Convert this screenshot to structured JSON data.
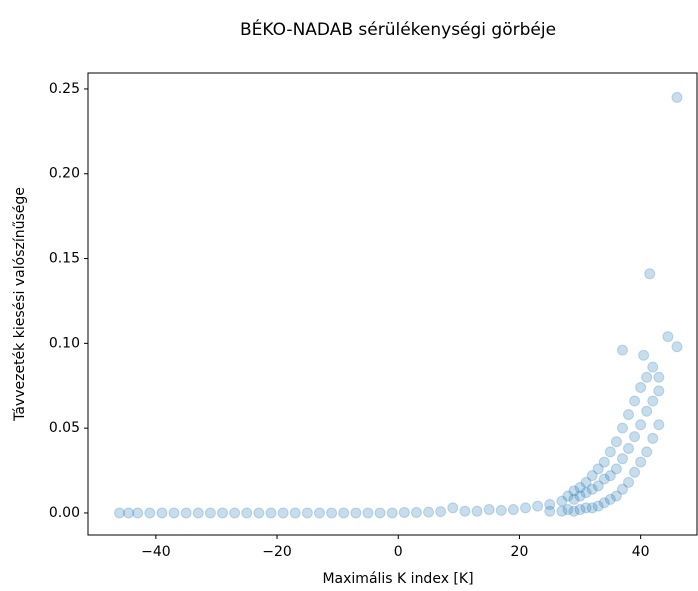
{
  "chart_data": {
    "type": "scatter",
    "title": "BÉKO-NADAB sérülékenységi görbéje",
    "xlabel": "Maximális K index  [K]",
    "ylabel": "Távvezeték kiesési valószínűsége",
    "color": "#1f77b4",
    "x": [
      -46,
      -44.5,
      -43,
      -41,
      -39,
      -37,
      -35,
      -33,
      -31,
      -29,
      -27,
      -25,
      -23,
      -21,
      -19,
      -17,
      -15,
      -13,
      -11,
      -9,
      -7,
      -5,
      -3,
      -1,
      1,
      3,
      5,
      7,
      9,
      11,
      13,
      15,
      17,
      19,
      21,
      23,
      25,
      25,
      27,
      27,
      28,
      28,
      29,
      29,
      29,
      30,
      30,
      30,
      31,
      31,
      31,
      32,
      32,
      32,
      33,
      33,
      33,
      34,
      34,
      34,
      35,
      35,
      35,
      36,
      36,
      36,
      37,
      37,
      37,
      38,
      38,
      38,
      39,
      39,
      39,
      40,
      40,
      40,
      41,
      41,
      41,
      42,
      42,
      42,
      43,
      43,
      43,
      46,
      41.5,
      44.5,
      46,
      37,
      40.5
    ],
    "y": [
      0,
      0,
      0,
      0,
      0,
      0,
      0,
      0,
      0,
      0,
      0,
      0,
      0,
      0,
      0,
      0,
      0,
      0,
      0,
      0,
      0,
      0,
      0,
      0,
      0.0003,
      0.0003,
      0.0005,
      0.0008,
      0.003,
      0.001,
      0.001,
      0.002,
      0.0015,
      0.002,
      0.003,
      0.004,
      0.001,
      0.005,
      0.001,
      0.007,
      0.002,
      0.01,
      0.001,
      0.008,
      0.013,
      0.002,
      0.01,
      0.015,
      0.003,
      0.012,
      0.018,
      0.003,
      0.014,
      0.022,
      0.004,
      0.016,
      0.026,
      0.006,
      0.02,
      0.03,
      0.008,
      0.022,
      0.036,
      0.01,
      0.026,
      0.042,
      0.014,
      0.032,
      0.05,
      0.018,
      0.038,
      0.058,
      0.024,
      0.045,
      0.066,
      0.03,
      0.052,
      0.074,
      0.036,
      0.06,
      0.08,
      0.044,
      0.066,
      0.086,
      0.052,
      0.072,
      0.08,
      0.245,
      0.141,
      0.104,
      0.098,
      0.096,
      0.093
    ],
    "xlim": [
      -51.2,
      49.3
    ],
    "ylim": [
      -0.013,
      0.2594
    ],
    "xticks": [
      {
        "value": -40,
        "label": "−40"
      },
      {
        "value": -20,
        "label": "−20"
      },
      0,
      20,
      40
    ],
    "yticks": [
      {
        "value": 0,
        "label": "0.00"
      },
      {
        "value": 0.05,
        "label": "0.05"
      },
      {
        "value": 0.1,
        "label": "0.10"
      },
      {
        "value": 0.15,
        "label": "0.15"
      },
      {
        "value": 0.2,
        "label": "0.20"
      },
      {
        "value": 0.25,
        "label": "0.25"
      }
    ],
    "grid": false
  }
}
